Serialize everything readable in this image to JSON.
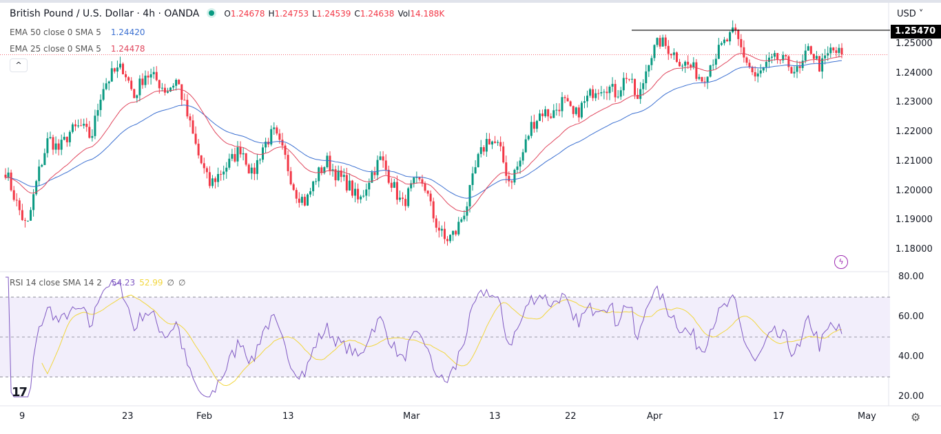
{
  "header": {
    "symbol": "British Pound / U.S. Dollar · 4h · OANDA",
    "ohlc": {
      "o_label": "O",
      "o": "1.24678",
      "h_label": "H",
      "h": "1.24753",
      "l_label": "L",
      "l": "1.24539",
      "c_label": "C",
      "c": "1.24638",
      "vol_label": "Vol",
      "vol": "14.188K"
    }
  },
  "indicators": {
    "ema50": {
      "label": "EMA 50 close 0 SMA 5",
      "value": "1.24420",
      "color": "#3a6fd1"
    },
    "ema25": {
      "label": "EMA 25 close 0 SMA 5",
      "value": "1.24478",
      "color": "#e0455c"
    },
    "rsi": {
      "label": "RSI 14 close SMA 14 2",
      "value": "54.23",
      "sma": "52.99",
      "extra1": "∅",
      "extra2": "∅",
      "color": "#7e57c2",
      "sma_color": "#f2d63b"
    }
  },
  "collapse_label": "^",
  "price_axis": {
    "currency": "USD ˅",
    "last_price": "1.25470",
    "ticks": [
      "1.25000",
      "1.24000",
      "1.23000",
      "1.22000",
      "1.21000",
      "1.20000",
      "1.19000",
      "1.18000"
    ]
  },
  "rsi_axis": {
    "ticks": [
      "80.00",
      "60.00",
      "40.00",
      "20.00"
    ]
  },
  "time_axis": [
    "9",
    "23",
    "Feb",
    "13",
    "Mar",
    "13",
    "22",
    "Apr",
    "17",
    "May"
  ],
  "chart_data": {
    "type": "candlestick",
    "title": "GBP/USD 4h",
    "resistance_level": 1.2547,
    "close_path": [
      1.207,
      1.196,
      1.187,
      1.205,
      1.218,
      1.214,
      1.22,
      1.222,
      1.218,
      1.235,
      1.24,
      1.242,
      1.232,
      1.24,
      1.238,
      1.234,
      1.238,
      1.225,
      1.212,
      1.202,
      1.206,
      1.21,
      1.215,
      1.205,
      1.215,
      1.22,
      1.212,
      1.2,
      1.196,
      1.205,
      1.21,
      1.205,
      1.202,
      1.196,
      1.205,
      1.211,
      1.203,
      1.195,
      1.202,
      1.203,
      1.19,
      1.183,
      1.186,
      1.195,
      1.21,
      1.218,
      1.215,
      1.203,
      1.21,
      1.222,
      1.227,
      1.226,
      1.231,
      1.225,
      1.23,
      1.235,
      1.236,
      1.233,
      1.24,
      1.23,
      1.245,
      1.251,
      1.248,
      1.244,
      1.242,
      1.238,
      1.245,
      1.25,
      1.254,
      1.245,
      1.238,
      1.243,
      1.245,
      1.243,
      1.24,
      1.249,
      1.242,
      1.248,
      1.2464
    ],
    "ylim": [
      1.175,
      1.258
    ],
    "rsi_levels": [
      70,
      50,
      30
    ],
    "up_color": "#089981",
    "down_color": "#f23645"
  }
}
